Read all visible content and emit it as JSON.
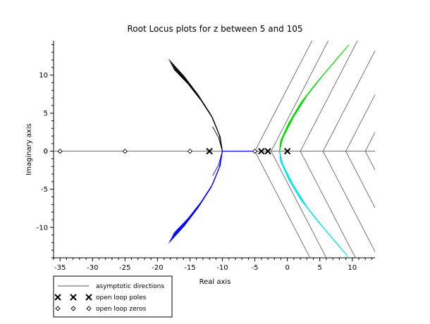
{
  "chart_data": {
    "type": "line",
    "title": "Root Locus plots for z between 5 and 105",
    "xlabel": "Real axis",
    "ylabel": "Imaginary axis",
    "xlim": [
      -36,
      13.5
    ],
    "ylim": [
      -14,
      14.5
    ],
    "xticks": [
      -35,
      -30,
      -25,
      -20,
      -15,
      -10,
      -5,
      0,
      5,
      10
    ],
    "yticks": [
      -10,
      -5,
      0,
      5,
      10
    ],
    "grid": false,
    "legend_position": "bottom-left",
    "legend": [
      {
        "label": "asymptotic directions",
        "marker": "line"
      },
      {
        "label": "open loop poles",
        "marker": "x"
      },
      {
        "label": "open loop zeros",
        "marker": "diamond"
      }
    ],
    "colors": {
      "upper_left_branch": "#000000",
      "lower_left_branch": "#0000ff",
      "upper_right_branch": "#00dd00",
      "lower_right_branch": "#00e5e5",
      "asymptotes": "#555555",
      "real_axis_segment": "#0000ff"
    },
    "open_loop_poles": [
      [
        -12,
        0
      ],
      [
        -4,
        0
      ],
      [
        -3,
        0
      ],
      [
        0,
        0
      ]
    ],
    "open_loop_zeros": [
      [
        -35,
        0
      ],
      [
        -25,
        0
      ],
      [
        -15,
        0
      ],
      [
        -5,
        0
      ]
    ],
    "asymptote_vertices": [
      [
        -5,
        0
      ],
      [
        -2.5,
        0
      ],
      [
        2,
        0
      ],
      [
        5.5,
        0
      ],
      [
        9,
        0
      ],
      [
        12,
        0
      ],
      [
        13.5,
        0
      ]
    ],
    "upper_left_branch": [
      [
        -10,
        0
      ],
      [
        -10.4,
        2
      ],
      [
        -11.6,
        4.5
      ],
      [
        -13.5,
        7
      ],
      [
        -15.5,
        9.2
      ],
      [
        -17.8,
        11.3
      ]
    ],
    "upper_left_inner": [
      [
        -10,
        0
      ],
      [
        -10.6,
        1.8
      ],
      [
        -11.5,
        3.2
      ]
    ],
    "lower_left_branch": [
      [
        -10,
        0
      ],
      [
        -10.4,
        -2
      ],
      [
        -11.6,
        -4.5
      ],
      [
        -13.5,
        -7
      ],
      [
        -15.5,
        -9.2
      ],
      [
        -17.8,
        -11.3
      ]
    ],
    "lower_left_inner": [
      [
        -10,
        0
      ],
      [
        -10.6,
        -1.8
      ],
      [
        -11.5,
        -3.2
      ]
    ],
    "upper_right_branch": [
      [
        -1.2,
        0
      ],
      [
        -0.9,
        1.5
      ],
      [
        0.5,
        4
      ],
      [
        2.5,
        6.8
      ],
      [
        5,
        9.5
      ],
      [
        8.5,
        13
      ]
    ],
    "lower_right_branch": [
      [
        -1.2,
        0
      ],
      [
        -0.9,
        -1.5
      ],
      [
        0.5,
        -4
      ],
      [
        2.5,
        -6.8
      ],
      [
        5,
        -9.5
      ],
      [
        8.5,
        -13
      ]
    ],
    "real_axis_segment": [
      [
        -10,
        0
      ],
      [
        -4.5,
        0
      ]
    ]
  }
}
